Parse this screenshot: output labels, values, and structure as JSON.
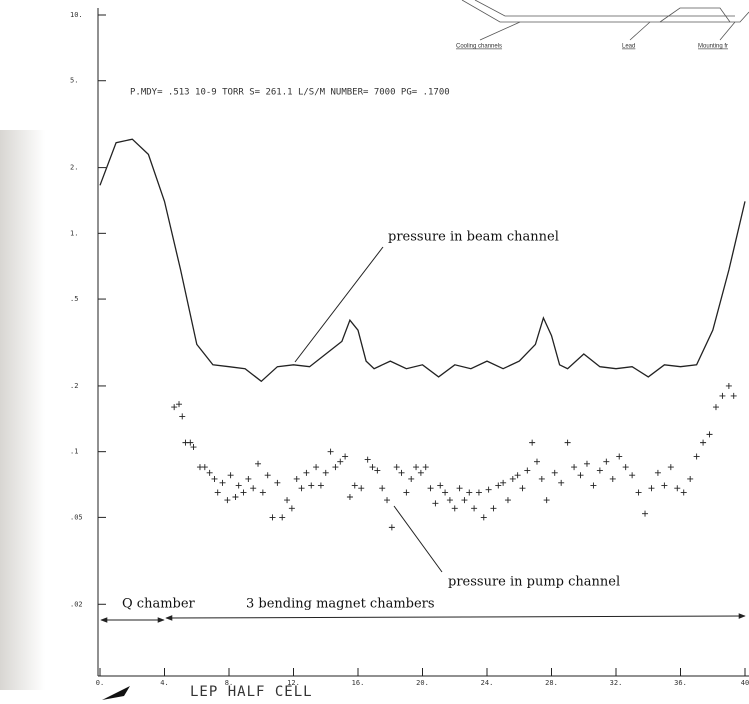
{
  "chart_data": {
    "type": "line",
    "subtitle": "P.MDY=  .513 10-9 TORR  S= 261.1 L/S/M  NUMBER=  7000  PG=  .1700",
    "xlabel": "LEP HALF CELL",
    "log_y": true,
    "xlim": [
      0,
      40
    ],
    "ylim": [
      0.01,
      10
    ],
    "xticks": [
      {
        "value": 0,
        "label": "0."
      },
      {
        "value": 4,
        "label": "4."
      },
      {
        "value": 8,
        "label": "8."
      },
      {
        "value": 12,
        "label": "12."
      },
      {
        "value": 16,
        "label": "16."
      },
      {
        "value": 20,
        "label": "20."
      },
      {
        "value": 24,
        "label": "24."
      },
      {
        "value": 28,
        "label": "28."
      },
      {
        "value": 32,
        "label": "32."
      },
      {
        "value": 36,
        "label": "36."
      },
      40
    ],
    "yticks": [
      {
        "value": 10,
        "label": "10."
      },
      {
        "value": 5,
        "label": "5."
      },
      {
        "value": 2,
        "label": "2."
      },
      {
        "value": 1,
        "label": "1."
      },
      {
        "value": 0.5,
        "label": ".5"
      },
      {
        "value": 0.2,
        "label": ".2"
      },
      {
        "value": 0.1,
        "label": ".1"
      },
      {
        "value": 0.05,
        "label": ".05"
      },
      {
        "value": 0.02,
        "label": ".02"
      }
    ],
    "annotations": [
      "Q chamber",
      "3 bending magnet chambers",
      "Cooling channels",
      "Lead",
      "Mounting fr"
    ],
    "series": [
      {
        "name": "pressure in beam channel",
        "style": "line",
        "color": "#222222",
        "x": [
          0,
          1,
          2,
          3,
          4,
          5,
          6,
          7,
          8,
          9,
          10,
          11,
          12,
          13,
          14,
          15,
          15.5,
          16,
          16.5,
          17,
          18,
          19,
          20,
          21,
          22,
          23,
          24,
          25,
          26,
          27,
          27.5,
          28,
          28.5,
          29,
          30,
          31,
          32,
          33,
          34,
          35,
          36,
          37,
          38,
          39,
          40
        ],
        "values": [
          1.66,
          2.6,
          2.7,
          2.3,
          1.4,
          0.68,
          0.31,
          0.25,
          0.245,
          0.24,
          0.21,
          0.245,
          0.25,
          0.245,
          0.28,
          0.32,
          0.4,
          0.36,
          0.26,
          0.24,
          0.26,
          0.24,
          0.25,
          0.22,
          0.25,
          0.24,
          0.26,
          0.24,
          0.26,
          0.31,
          0.41,
          0.34,
          0.25,
          0.24,
          0.28,
          0.245,
          0.24,
          0.245,
          0.22,
          0.25,
          0.245,
          0.25,
          0.36,
          0.68,
          1.4
        ]
      },
      {
        "name": "pressure in pump channel",
        "style": "plus",
        "color": "#222222",
        "x": [
          4.6,
          4.9,
          5.1,
          5.3,
          5.6,
          5.8,
          6.2,
          6.5,
          6.8,
          7.1,
          7.3,
          7.6,
          7.9,
          8.1,
          8.4,
          8.6,
          8.9,
          9.2,
          9.5,
          9.8,
          10.1,
          10.4,
          10.7,
          11,
          11.3,
          11.6,
          11.9,
          12.2,
          12.5,
          12.8,
          13.1,
          13.4,
          13.7,
          14,
          14.3,
          14.6,
          14.9,
          15.2,
          15.5,
          15.8,
          16.2,
          16.6,
          16.9,
          17.2,
          17.5,
          17.8,
          18.1,
          18.4,
          18.7,
          19,
          19.3,
          19.6,
          19.9,
          20.2,
          20.5,
          20.8,
          21.1,
          21.4,
          21.7,
          22,
          22.3,
          22.6,
          22.9,
          23.2,
          23.5,
          23.8,
          24.1,
          24.4,
          24.7,
          25,
          25.3,
          25.6,
          25.9,
          26.2,
          26.5,
          26.8,
          27.1,
          27.4,
          27.7,
          28.2,
          28.6,
          29,
          29.4,
          29.8,
          30.2,
          30.6,
          31,
          31.4,
          31.8,
          32.2,
          32.6,
          33,
          33.4,
          33.8,
          34.2,
          34.6,
          35,
          35.4,
          35.8,
          36.2,
          36.6,
          37,
          37.4,
          37.8,
          38.2,
          38.6,
          39,
          39.3
        ],
        "values": [
          0.16,
          0.165,
          0.145,
          0.11,
          0.11,
          0.105,
          0.085,
          0.085,
          0.08,
          0.075,
          0.065,
          0.072,
          0.06,
          0.078,
          0.062,
          0.07,
          0.065,
          0.075,
          0.068,
          0.088,
          0.065,
          0.078,
          0.05,
          0.072,
          0.05,
          0.06,
          0.055,
          0.075,
          0.068,
          0.08,
          0.07,
          0.085,
          0.07,
          0.08,
          0.1,
          0.085,
          0.09,
          0.095,
          0.062,
          0.07,
          0.068,
          0.092,
          0.085,
          0.082,
          0.068,
          0.06,
          0.045,
          0.085,
          0.08,
          0.065,
          0.075,
          0.085,
          0.08,
          0.085,
          0.068,
          0.058,
          0.07,
          0.065,
          0.06,
          0.055,
          0.068,
          0.06,
          0.065,
          0.055,
          0.065,
          0.05,
          0.067,
          0.055,
          0.07,
          0.072,
          0.06,
          0.075,
          0.078,
          0.068,
          0.082,
          0.11,
          0.09,
          0.075,
          0.06,
          0.08,
          0.072,
          0.11,
          0.085,
          0.078,
          0.088,
          0.07,
          0.082,
          0.09,
          0.075,
          0.095,
          0.085,
          0.078,
          0.065,
          0.052,
          0.068,
          0.08,
          0.07,
          0.085,
          0.068,
          0.065,
          0.075,
          0.095,
          0.11,
          0.12,
          0.16,
          0.18,
          0.2,
          0.18
        ]
      }
    ]
  }
}
